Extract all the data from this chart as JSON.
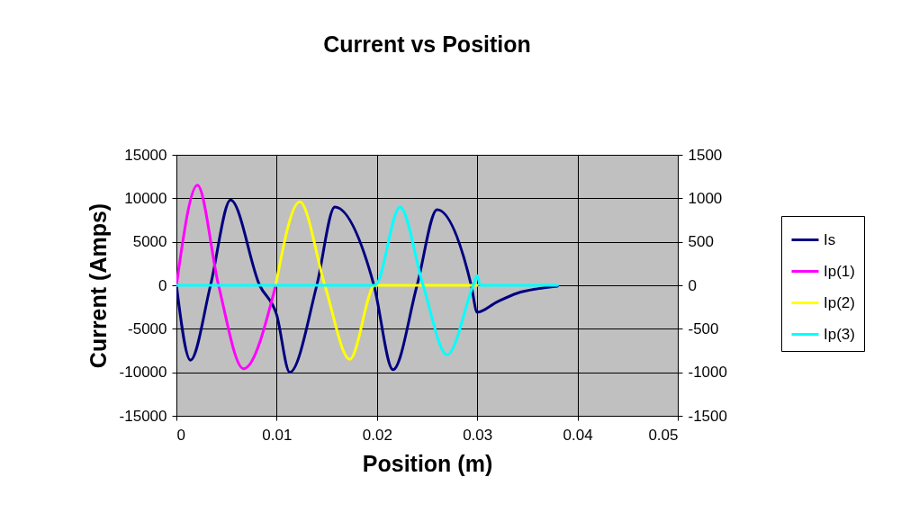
{
  "chart_data": {
    "type": "line",
    "title": "Current vs Position",
    "xlabel": "Position (m)",
    "ylabel": "Current (Amps)",
    "xlim": [
      0,
      0.05
    ],
    "xticks": [
      0,
      0.01,
      0.02,
      0.03,
      0.04,
      0.05
    ],
    "ylim": [
      -15000,
      15000
    ],
    "yticks": [
      -15000,
      -10000,
      -5000,
      0,
      5000,
      10000,
      15000
    ],
    "y2lim": [
      -1500,
      1500
    ],
    "y2ticks": [
      -1500,
      -1000,
      -500,
      0,
      500,
      1000,
      1500
    ],
    "grid": true,
    "legend": "right",
    "marker": "none",
    "series": [
      {
        "name": "Is",
        "color": "#000080",
        "x": [
          0,
          0.0014,
          0.0034,
          0.0054,
          0.0083,
          0.01,
          0.0113,
          0.014,
          0.0158,
          0.0197,
          0.0216,
          0.024,
          0.026,
          0.0294,
          0.03,
          0.032,
          0.034,
          0.036,
          0.038
        ],
        "values": [
          0,
          -8600,
          0,
          9800,
          0,
          -3400,
          -10000,
          0,
          9000,
          0,
          -9700,
          0,
          8700,
          0,
          -3100,
          -1900,
          -900,
          -400,
          -100
        ]
      },
      {
        "name": "Ip(1)",
        "color": "#ff00ff",
        "x": [
          0,
          0.0021,
          0.0042,
          0.0067,
          0.0099
        ],
        "values": [
          0,
          11500,
          0,
          -9600,
          0
        ]
      },
      {
        "name": "Ip(2)",
        "color": "#ffff00",
        "x": [
          0.0099,
          0.0123,
          0.0148,
          0.0173,
          0.0198,
          0.03
        ],
        "values": [
          0,
          9600,
          0,
          -8500,
          0,
          0
        ]
      },
      {
        "name": "Ip(3)",
        "color": "#00ffff",
        "x": [
          0,
          0.0198,
          0.0223,
          0.0246,
          0.027,
          0.0296,
          0.03,
          0.0303,
          0.038
        ],
        "values": [
          0,
          0,
          9000,
          0,
          -8000,
          0,
          1100,
          0,
          0
        ]
      }
    ]
  }
}
